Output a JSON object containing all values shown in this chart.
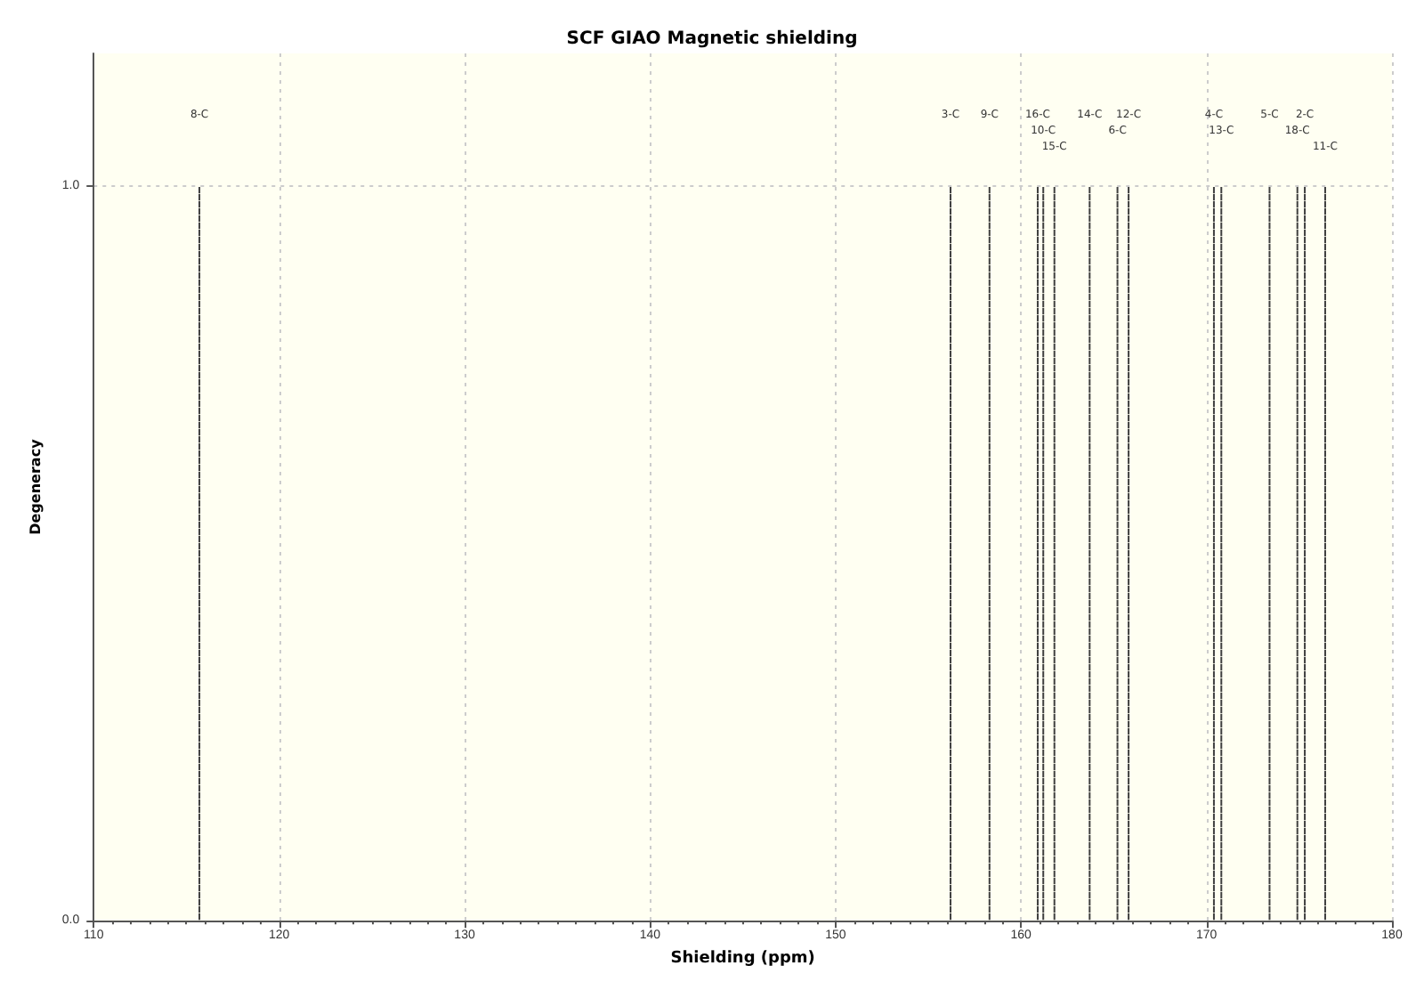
{
  "chart_data": {
    "type": "bar",
    "title": "SCF GIAO Magnetic shielding",
    "xlabel": "Shielding (ppm)",
    "ylabel": "Degeneracy",
    "x": [
      115.7,
      156.2,
      158.3,
      160.9,
      161.2,
      161.8,
      163.7,
      165.2,
      165.8,
      170.4,
      170.8,
      173.4,
      174.9,
      175.3,
      176.4
    ],
    "values": [
      1,
      1,
      1,
      1,
      1,
      1,
      1,
      1,
      1,
      1,
      1,
      1,
      1,
      1,
      1
    ],
    "color": "#404040",
    "line_style": "dotted",
    "xlim": [
      110,
      180
    ],
    "xticks": [
      110,
      120,
      130,
      140,
      150,
      160,
      170,
      180
    ],
    "ylim": [
      0,
      1.18
    ],
    "yticks": [
      {
        "value": 0,
        "label": "0.0"
      },
      {
        "value": 1,
        "label": "1.0"
      }
    ],
    "grid": true,
    "annotations": [
      "8-C",
      "3-C",
      "9-C",
      "16-C",
      "10-C",
      "15-C",
      "14-C",
      "6-C",
      "12-C",
      "4-C",
      "13-C",
      "5-C",
      "18-C",
      "2-C",
      "11-C"
    ]
  }
}
